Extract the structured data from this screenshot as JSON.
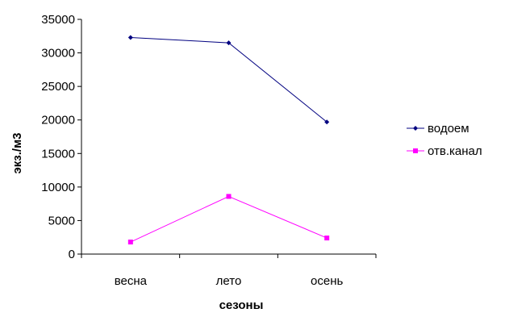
{
  "chart_data": {
    "type": "line",
    "categories": [
      "весна",
      "лето",
      "осень"
    ],
    "series": [
      {
        "name": "водоем",
        "values": [
          32300,
          31500,
          19700
        ],
        "color": "#000080",
        "marker": "diamond"
      },
      {
        "name": "отв.канал",
        "values": [
          1800,
          8600,
          2400
        ],
        "color": "#ff00ff",
        "marker": "square"
      }
    ],
    "xlabel": "сезоны",
    "ylabel": "экз./м3",
    "ylim": [
      0,
      35000
    ],
    "yticks": [
      0,
      5000,
      10000,
      15000,
      20000,
      25000,
      30000,
      35000
    ],
    "grid": false,
    "legend_position": "right"
  }
}
